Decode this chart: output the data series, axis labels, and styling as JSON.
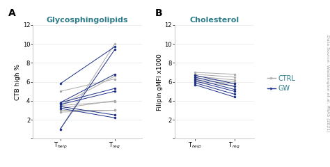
{
  "panel_A_title": "Glycosphingolipids",
  "panel_B_title": "Cholesterol",
  "panel_A_ylabel": "CTB high %",
  "panel_B_ylabel": "Filipin gMFI x1000",
  "xlabel": [
    "T$_{help}$",
    "T$_{reg}$"
  ],
  "ylim": [
    0,
    12
  ],
  "yticks": [
    0,
    2,
    4,
    6,
    8,
    10,
    12
  ],
  "ctrl_color": "#aaaaaa",
  "gw_color": "#1c2f8a",
  "text_color": "#2e7d8a",
  "panel_A_ctrl_lines": [
    [
      5.0,
      6.3
    ],
    [
      3.5,
      6.6
    ],
    [
      3.5,
      3.9
    ],
    [
      3.2,
      4.0
    ],
    [
      3.0,
      3.0
    ],
    [
      2.8,
      3.0
    ],
    [
      1.0,
      10.0
    ]
  ],
  "panel_A_gw_lines": [
    [
      5.8,
      9.7
    ],
    [
      3.8,
      6.8
    ],
    [
      3.8,
      5.3
    ],
    [
      3.6,
      5.0
    ],
    [
      3.4,
      2.5
    ],
    [
      3.2,
      2.2
    ],
    [
      1.0,
      9.4
    ]
  ],
  "panel_B_ctrl_lines": [
    [
      7.0,
      6.8
    ],
    [
      6.8,
      6.5
    ],
    [
      6.6,
      6.2
    ],
    [
      6.4,
      6.0
    ],
    [
      6.2,
      5.8
    ],
    [
      6.0,
      5.6
    ]
  ],
  "panel_B_gw_lines": [
    [
      6.7,
      5.8
    ],
    [
      6.5,
      5.5
    ],
    [
      6.3,
      5.2
    ],
    [
      6.1,
      5.0
    ],
    [
      5.9,
      4.7
    ],
    [
      5.7,
      4.4
    ]
  ],
  "label_A": "A",
  "label_B": "B",
  "datasource": "Data Source: Waddington et al. PNAS (2021)",
  "legend_ctrl": "CTRL",
  "legend_gw": "GW",
  "title_fontsize": 8,
  "axis_label_fontsize": 6.5,
  "tick_fontsize": 6,
  "panel_label_fontsize": 10,
  "legend_fontsize": 7
}
